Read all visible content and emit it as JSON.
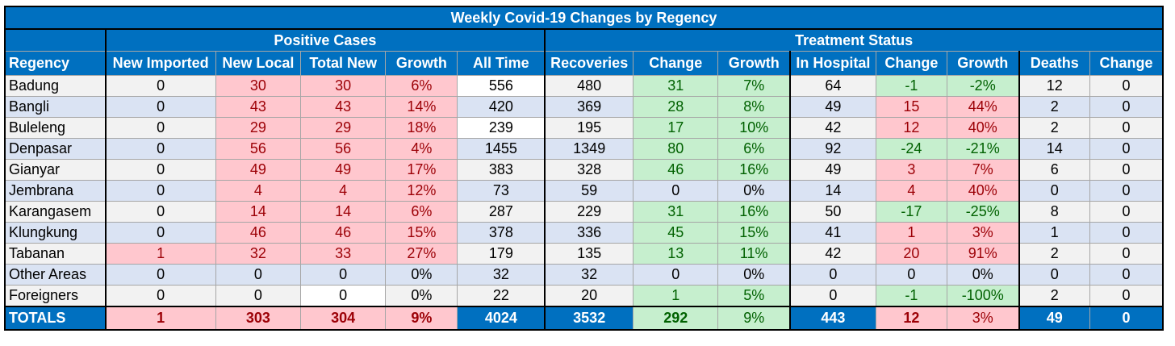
{
  "title": "Weekly Covid-19 Changes by Regency",
  "groups": {
    "positive": "Positive Cases",
    "treatment": "Treatment Status"
  },
  "headers": [
    "Regency",
    "New Imported",
    "New Local",
    "Total New",
    "Growth",
    "All Time",
    "Recoveries",
    "Change",
    "Growth",
    "In Hospital",
    "Change",
    "Growth",
    "Deaths",
    "Change"
  ],
  "rows": [
    {
      "regency": "Badung",
      "new_imported": "0",
      "new_local": "30",
      "total_new": "30",
      "growth": "6%",
      "all_time": "556",
      "recoveries": "480",
      "rec_change": "31",
      "rec_growth": "7%",
      "in_hospital": "64",
      "hosp_change": "-1",
      "hosp_growth": "-2%",
      "deaths": "12",
      "death_change": "0"
    },
    {
      "regency": "Bangli",
      "new_imported": "0",
      "new_local": "43",
      "total_new": "43",
      "growth": "14%",
      "all_time": "420",
      "recoveries": "369",
      "rec_change": "28",
      "rec_growth": "8%",
      "in_hospital": "49",
      "hosp_change": "15",
      "hosp_growth": "44%",
      "deaths": "2",
      "death_change": "0"
    },
    {
      "regency": "Buleleng",
      "new_imported": "0",
      "new_local": "29",
      "total_new": "29",
      "growth": "18%",
      "all_time": "239",
      "recoveries": "195",
      "rec_change": "17",
      "rec_growth": "10%",
      "in_hospital": "42",
      "hosp_change": "12",
      "hosp_growth": "40%",
      "deaths": "2",
      "death_change": "0"
    },
    {
      "regency": "Denpasar",
      "new_imported": "0",
      "new_local": "56",
      "total_new": "56",
      "growth": "4%",
      "all_time": "1455",
      "recoveries": "1349",
      "rec_change": "80",
      "rec_growth": "6%",
      "in_hospital": "92",
      "hosp_change": "-24",
      "hosp_growth": "-21%",
      "deaths": "14",
      "death_change": "0"
    },
    {
      "regency": "Gianyar",
      "new_imported": "0",
      "new_local": "49",
      "total_new": "49",
      "growth": "17%",
      "all_time": "383",
      "recoveries": "328",
      "rec_change": "46",
      "rec_growth": "16%",
      "in_hospital": "49",
      "hosp_change": "3",
      "hosp_growth": "7%",
      "deaths": "6",
      "death_change": "0"
    },
    {
      "regency": "Jembrana",
      "new_imported": "0",
      "new_local": "4",
      "total_new": "4",
      "growth": "12%",
      "all_time": "73",
      "recoveries": "59",
      "rec_change": "0",
      "rec_growth": "0%",
      "in_hospital": "14",
      "hosp_change": "4",
      "hosp_growth": "40%",
      "deaths": "0",
      "death_change": "0"
    },
    {
      "regency": "Karangasem",
      "new_imported": "0",
      "new_local": "14",
      "total_new": "14",
      "growth": "6%",
      "all_time": "287",
      "recoveries": "229",
      "rec_change": "31",
      "rec_growth": "16%",
      "in_hospital": "50",
      "hosp_change": "-17",
      "hosp_growth": "-25%",
      "deaths": "8",
      "death_change": "0"
    },
    {
      "regency": "Klungkung",
      "new_imported": "0",
      "new_local": "46",
      "total_new": "46",
      "growth": "15%",
      "all_time": "378",
      "recoveries": "336",
      "rec_change": "45",
      "rec_growth": "15%",
      "in_hospital": "41",
      "hosp_change": "1",
      "hosp_growth": "3%",
      "deaths": "1",
      "death_change": "0"
    },
    {
      "regency": "Tabanan",
      "new_imported": "1",
      "new_local": "32",
      "total_new": "33",
      "growth": "27%",
      "all_time": "179",
      "recoveries": "135",
      "rec_change": "13",
      "rec_growth": "11%",
      "in_hospital": "42",
      "hosp_change": "20",
      "hosp_growth": "91%",
      "deaths": "2",
      "death_change": "0"
    },
    {
      "regency": "Other Areas",
      "new_imported": "0",
      "new_local": "0",
      "total_new": "0",
      "growth": "0%",
      "all_time": "32",
      "recoveries": "32",
      "rec_change": "0",
      "rec_growth": "0%",
      "in_hospital": "0",
      "hosp_change": "0",
      "hosp_growth": "0%",
      "deaths": "0",
      "death_change": "0"
    },
    {
      "regency": "Foreigners",
      "new_imported": "0",
      "new_local": "0",
      "total_new": "0",
      "growth": "0%",
      "all_time": "22",
      "recoveries": "20",
      "rec_change": "1",
      "rec_growth": "5%",
      "in_hospital": "0",
      "hosp_change": "-1",
      "hosp_growth": "-100%",
      "deaths": "2",
      "death_change": "0"
    }
  ],
  "totals": {
    "regency": "TOTALS",
    "new_imported": "1",
    "new_local": "303",
    "total_new": "304",
    "growth": "9%",
    "all_time": "4024",
    "recoveries": "3532",
    "rec_change": "292",
    "rec_growth": "9%",
    "in_hospital": "443",
    "hosp_change": "12",
    "hosp_growth": "3%",
    "deaths": "49",
    "death_change": "0"
  },
  "colors": {
    "header_blue": "#0070c0",
    "positive_fill": "#ffc7ce",
    "positive_text": "#9c0006",
    "good_fill": "#c6efce",
    "good_text": "#006100",
    "band_gray": "#f2f2f2",
    "band_blue": "#dae3f3"
  }
}
